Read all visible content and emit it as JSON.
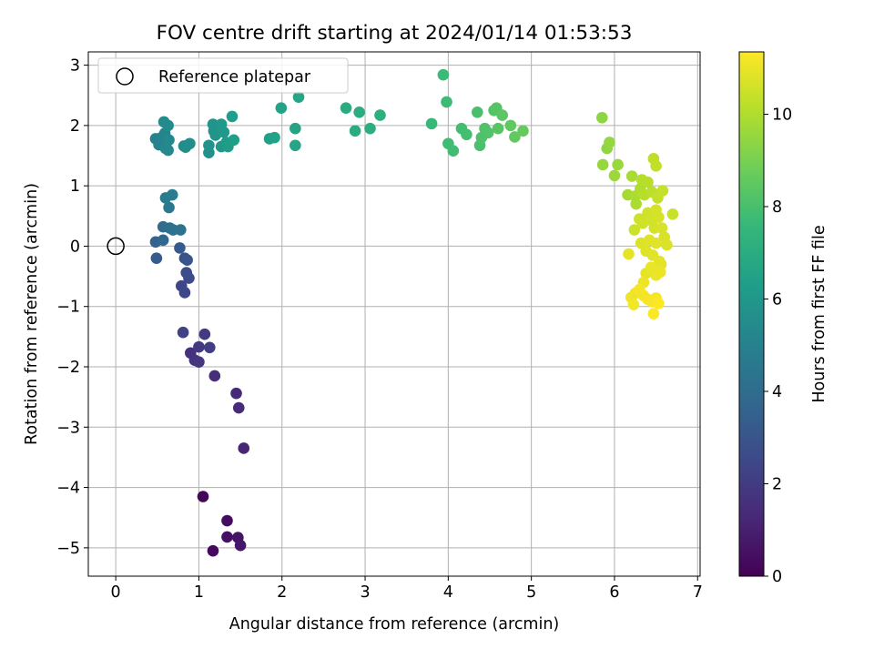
{
  "chart_data": {
    "type": "scatter",
    "title": "FOV centre drift starting at 2024/01/14 01:53:53",
    "xlabel": "Angular distance from reference (arcmin)",
    "ylabel": "Rotation from reference (arcmin)",
    "xlim": [
      -0.33,
      7.03
    ],
    "ylim": [
      -5.47,
      3.22
    ],
    "xticks": [
      0,
      1,
      2,
      3,
      4,
      5,
      6,
      7
    ],
    "yticks": [
      -5,
      -4,
      -3,
      -2,
      -1,
      0,
      1,
      2,
      3
    ],
    "grid": true,
    "legend": {
      "position": "top-left",
      "entries": [
        {
          "label": "Reference platepar",
          "marker": "hollow-circle"
        }
      ]
    },
    "reference_point": {
      "x": 0,
      "y": 0
    },
    "colorbar": {
      "label": "Hours from first FF file",
      "colormap": "viridis",
      "range": [
        0,
        11.35
      ],
      "ticks": [
        0,
        2,
        4,
        6,
        8,
        10
      ]
    },
    "colormap_stops": [
      "#440154",
      "#482878",
      "#3e4989",
      "#31688e",
      "#26828e",
      "#1f9e89",
      "#35b779",
      "#6ece58",
      "#b5de2b",
      "#fde725"
    ],
    "series": [
      {
        "points": [
          {
            "x": 1.05,
            "y": -4.15,
            "c": 0.2
          },
          {
            "x": 1.17,
            "y": -5.05,
            "c": 0.3
          },
          {
            "x": 1.34,
            "y": -4.55,
            "c": 0.4
          },
          {
            "x": 1.34,
            "y": -4.82,
            "c": 0.5
          },
          {
            "x": 1.47,
            "y": -4.83,
            "c": 0.6
          },
          {
            "x": 1.5,
            "y": -4.96,
            "c": 0.7
          },
          {
            "x": 1.54,
            "y": -3.35,
            "c": 1.2
          },
          {
            "x": 1.45,
            "y": -2.44,
            "c": 1.3
          },
          {
            "x": 1.48,
            "y": -2.68,
            "c": 1.4
          },
          {
            "x": 1.19,
            "y": -2.15,
            "c": 1.5
          },
          {
            "x": 0.9,
            "y": -1.77,
            "c": 1.6
          },
          {
            "x": 0.95,
            "y": -1.89,
            "c": 1.7
          },
          {
            "x": 1.0,
            "y": -1.92,
            "c": 1.8
          },
          {
            "x": 1.0,
            "y": -1.67,
            "c": 1.9
          },
          {
            "x": 1.07,
            "y": -1.46,
            "c": 2.0
          },
          {
            "x": 1.13,
            "y": -1.68,
            "c": 2.1
          },
          {
            "x": 0.81,
            "y": -1.43,
            "c": 2.2
          },
          {
            "x": 0.79,
            "y": -0.66,
            "c": 2.4
          },
          {
            "x": 0.83,
            "y": -0.77,
            "c": 2.5
          },
          {
            "x": 0.88,
            "y": -0.53,
            "c": 2.6
          },
          {
            "x": 0.85,
            "y": -0.44,
            "c": 2.7
          },
          {
            "x": 0.83,
            "y": -0.2,
            "c": 2.9
          },
          {
            "x": 0.86,
            "y": -0.23,
            "c": 3.0
          },
          {
            "x": 0.77,
            "y": -0.03,
            "c": 3.2
          },
          {
            "x": 0.49,
            "y": -0.2,
            "c": 3.3
          },
          {
            "x": 0.48,
            "y": 0.07,
            "c": 3.6
          },
          {
            "x": 0.57,
            "y": 0.1,
            "c": 3.8
          },
          {
            "x": 0.57,
            "y": 0.32,
            "c": 4.0
          },
          {
            "x": 0.65,
            "y": 0.3,
            "c": 4.1
          },
          {
            "x": 0.69,
            "y": 0.27,
            "c": 4.2
          },
          {
            "x": 0.78,
            "y": 0.27,
            "c": 4.3
          },
          {
            "x": 0.64,
            "y": 0.64,
            "c": 4.5
          },
          {
            "x": 0.6,
            "y": 0.8,
            "c": 4.7
          },
          {
            "x": 0.68,
            "y": 0.85,
            "c": 4.8
          },
          {
            "x": 0.48,
            "y": 1.78,
            "c": 5.0
          },
          {
            "x": 0.52,
            "y": 1.68,
            "c": 5.05
          },
          {
            "x": 0.55,
            "y": 1.8,
            "c": 5.1
          },
          {
            "x": 0.59,
            "y": 1.87,
            "c": 5.2
          },
          {
            "x": 0.6,
            "y": 1.62,
            "c": 5.25
          },
          {
            "x": 0.63,
            "y": 1.59,
            "c": 5.3
          },
          {
            "x": 0.64,
            "y": 1.76,
            "c": 5.35
          },
          {
            "x": 0.58,
            "y": 2.06,
            "c": 5.4
          },
          {
            "x": 0.63,
            "y": 2.0,
            "c": 5.45
          },
          {
            "x": 0.82,
            "y": 1.66,
            "c": 5.5
          },
          {
            "x": 0.84,
            "y": 1.64,
            "c": 5.55
          },
          {
            "x": 0.89,
            "y": 1.7,
            "c": 5.6
          },
          {
            "x": 1.12,
            "y": 1.55,
            "c": 5.7
          },
          {
            "x": 1.12,
            "y": 1.67,
            "c": 5.75
          },
          {
            "x": 1.18,
            "y": 1.91,
            "c": 5.8
          },
          {
            "x": 1.17,
            "y": 2.02,
            "c": 5.85
          },
          {
            "x": 1.2,
            "y": 1.84,
            "c": 5.9
          },
          {
            "x": 1.26,
            "y": 1.96,
            "c": 5.95
          },
          {
            "x": 1.27,
            "y": 1.65,
            "c": 6.0
          },
          {
            "x": 1.27,
            "y": 2.02,
            "c": 6.05
          },
          {
            "x": 1.3,
            "y": 1.89,
            "c": 6.1
          },
          {
            "x": 1.33,
            "y": 1.72,
            "c": 6.15
          },
          {
            "x": 1.35,
            "y": 1.65,
            "c": 6.2
          },
          {
            "x": 1.4,
            "y": 2.15,
            "c": 6.3
          },
          {
            "x": 1.42,
            "y": 1.76,
            "c": 6.35
          },
          {
            "x": 1.85,
            "y": 1.78,
            "c": 6.4
          },
          {
            "x": 1.91,
            "y": 1.8,
            "c": 6.5
          },
          {
            "x": 1.99,
            "y": 2.29,
            "c": 6.55
          },
          {
            "x": 2.16,
            "y": 1.95,
            "c": 6.6
          },
          {
            "x": 2.16,
            "y": 1.67,
            "c": 6.65
          },
          {
            "x": 2.2,
            "y": 2.47,
            "c": 6.7
          },
          {
            "x": 2.77,
            "y": 2.29,
            "c": 6.95
          },
          {
            "x": 2.88,
            "y": 1.91,
            "c": 7.0
          },
          {
            "x": 2.93,
            "y": 2.22,
            "c": 7.05
          },
          {
            "x": 3.06,
            "y": 1.95,
            "c": 7.1
          },
          {
            "x": 3.18,
            "y": 2.17,
            "c": 7.15
          },
          {
            "x": 3.8,
            "y": 2.03,
            "c": 7.6
          },
          {
            "x": 3.94,
            "y": 2.84,
            "c": 7.7
          },
          {
            "x": 3.98,
            "y": 2.39,
            "c": 7.75
          },
          {
            "x": 4.0,
            "y": 1.7,
            "c": 7.8
          },
          {
            "x": 4.06,
            "y": 1.58,
            "c": 7.85
          },
          {
            "x": 4.16,
            "y": 1.95,
            "c": 7.9
          },
          {
            "x": 4.22,
            "y": 1.85,
            "c": 7.95
          },
          {
            "x": 4.35,
            "y": 2.22,
            "c": 8.0
          },
          {
            "x": 4.38,
            "y": 1.67,
            "c": 8.05
          },
          {
            "x": 4.4,
            "y": 1.8,
            "c": 8.1
          },
          {
            "x": 4.44,
            "y": 1.95,
            "c": 8.15
          },
          {
            "x": 4.48,
            "y": 1.88,
            "c": 8.2
          },
          {
            "x": 4.55,
            "y": 2.25,
            "c": 8.25
          },
          {
            "x": 4.58,
            "y": 2.29,
            "c": 8.3
          },
          {
            "x": 4.6,
            "y": 1.95,
            "c": 8.35
          },
          {
            "x": 4.65,
            "y": 2.17,
            "c": 8.4
          },
          {
            "x": 4.75,
            "y": 2.0,
            "c": 8.5
          },
          {
            "x": 4.8,
            "y": 1.81,
            "c": 8.55
          },
          {
            "x": 4.9,
            "y": 1.91,
            "c": 8.6
          },
          {
            "x": 5.85,
            "y": 2.13,
            "c": 9.4
          },
          {
            "x": 5.91,
            "y": 1.62,
            "c": 9.45
          },
          {
            "x": 5.94,
            "y": 1.72,
            "c": 9.5
          },
          {
            "x": 5.86,
            "y": 1.35,
            "c": 9.55
          },
          {
            "x": 6.04,
            "y": 1.35,
            "c": 9.6
          },
          {
            "x": 6.0,
            "y": 1.17,
            "c": 9.65
          },
          {
            "x": 6.16,
            "y": 0.85,
            "c": 9.8
          },
          {
            "x": 6.21,
            "y": 1.16,
            "c": 9.85
          },
          {
            "x": 6.25,
            "y": 0.83,
            "c": 9.9
          },
          {
            "x": 6.26,
            "y": 0.7,
            "c": 9.95
          },
          {
            "x": 6.31,
            "y": 0.95,
            "c": 10.0
          },
          {
            "x": 6.33,
            "y": 1.1,
            "c": 10.05
          },
          {
            "x": 6.36,
            "y": 0.85,
            "c": 10.1
          },
          {
            "x": 6.4,
            "y": 1.06,
            "c": 10.15
          },
          {
            "x": 6.45,
            "y": 0.9,
            "c": 10.2
          },
          {
            "x": 6.47,
            "y": 1.45,
            "c": 10.25
          },
          {
            "x": 6.5,
            "y": 1.33,
            "c": 10.3
          },
          {
            "x": 6.52,
            "y": 0.8,
            "c": 10.35
          },
          {
            "x": 6.58,
            "y": 0.92,
            "c": 10.4
          },
          {
            "x": 6.7,
            "y": 0.53,
            "c": 10.45
          },
          {
            "x": 6.24,
            "y": 0.27,
            "c": 10.5
          },
          {
            "x": 6.3,
            "y": 0.45,
            "c": 10.5
          },
          {
            "x": 6.34,
            "y": 0.38,
            "c": 10.55
          },
          {
            "x": 6.4,
            "y": 0.55,
            "c": 10.55
          },
          {
            "x": 6.45,
            "y": 0.42,
            "c": 10.6
          },
          {
            "x": 6.48,
            "y": 0.3,
            "c": 10.6
          },
          {
            "x": 6.5,
            "y": 0.6,
            "c": 10.65
          },
          {
            "x": 6.53,
            "y": 0.48,
            "c": 10.65
          },
          {
            "x": 6.57,
            "y": 0.3,
            "c": 10.7
          },
          {
            "x": 6.6,
            "y": 0.15,
            "c": 10.7
          },
          {
            "x": 6.63,
            "y": 0.02,
            "c": 10.75
          },
          {
            "x": 6.32,
            "y": 0.05,
            "c": 10.75
          },
          {
            "x": 6.38,
            "y": -0.08,
            "c": 10.8
          },
          {
            "x": 6.42,
            "y": 0.1,
            "c": 10.8
          },
          {
            "x": 6.46,
            "y": -0.15,
            "c": 10.85
          },
          {
            "x": 6.5,
            "y": 0.05,
            "c": 10.85
          },
          {
            "x": 6.54,
            "y": -0.25,
            "c": 10.9
          },
          {
            "x": 6.56,
            "y": -0.3,
            "c": 10.9
          },
          {
            "x": 6.17,
            "y": -0.13,
            "c": 10.95
          },
          {
            "x": 6.38,
            "y": -0.45,
            "c": 10.95
          },
          {
            "x": 6.44,
            "y": -0.35,
            "c": 11.0
          },
          {
            "x": 6.5,
            "y": -0.48,
            "c": 11.0
          },
          {
            "x": 6.55,
            "y": -0.43,
            "c": 11.05
          },
          {
            "x": 6.35,
            "y": -0.6,
            "c": 11.05
          },
          {
            "x": 6.2,
            "y": -0.85,
            "c": 11.1
          },
          {
            "x": 6.25,
            "y": -0.78,
            "c": 11.1
          },
          {
            "x": 6.23,
            "y": -0.97,
            "c": 11.15
          },
          {
            "x": 6.3,
            "y": -0.72,
            "c": 11.15
          },
          {
            "x": 6.35,
            "y": -0.82,
            "c": 11.2
          },
          {
            "x": 6.4,
            "y": -0.88,
            "c": 11.2
          },
          {
            "x": 6.45,
            "y": -0.92,
            "c": 11.25
          },
          {
            "x": 6.5,
            "y": -0.86,
            "c": 11.25
          },
          {
            "x": 6.53,
            "y": -0.95,
            "c": 11.3
          },
          {
            "x": 6.47,
            "y": -1.12,
            "c": 11.3
          }
        ]
      }
    ]
  }
}
